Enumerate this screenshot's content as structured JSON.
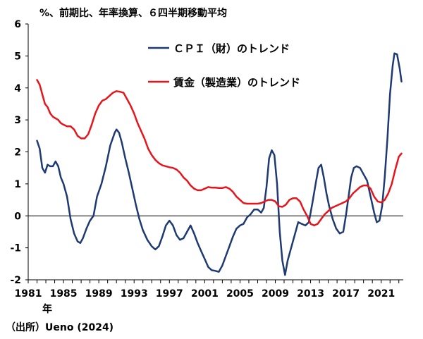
{
  "chart_data": {
    "type": "line",
    "unit_label": "%、前期比、年率換算、６四半期移動平均",
    "x_unit_label": "年",
    "source": "（出所）Ueno (2024)",
    "xlim": [
      1981,
      2023.5
    ],
    "ylim": [
      -2,
      6
    ],
    "x_ticks": [
      "1981",
      "1985",
      "1989",
      "1993",
      "1997",
      "2001",
      "2005",
      "2009",
      "2013",
      "2017",
      "2021"
    ],
    "y_ticks": [
      "-2",
      "-1",
      "0",
      "1",
      "2",
      "3",
      "4",
      "5",
      "6"
    ],
    "zero_line": true,
    "grid": false,
    "legend_position": "top-center",
    "series": [
      {
        "name": "ＣＰＩ（財）のトレンド",
        "color": "#1f3a73",
        "points": [
          [
            1982.0,
            2.35
          ],
          [
            1982.3,
            2.1
          ],
          [
            1982.6,
            1.5
          ],
          [
            1982.9,
            1.35
          ],
          [
            1983.2,
            1.6
          ],
          [
            1983.5,
            1.55
          ],
          [
            1983.8,
            1.55
          ],
          [
            1984.1,
            1.7
          ],
          [
            1984.4,
            1.55
          ],
          [
            1984.7,
            1.2
          ],
          [
            1985.0,
            1.0
          ],
          [
            1985.4,
            0.6
          ],
          [
            1985.8,
            -0.1
          ],
          [
            1986.2,
            -0.55
          ],
          [
            1986.6,
            -0.8
          ],
          [
            1986.9,
            -0.85
          ],
          [
            1987.2,
            -0.7
          ],
          [
            1987.6,
            -0.4
          ],
          [
            1988.0,
            -0.15
          ],
          [
            1988.4,
            0.0
          ],
          [
            1988.8,
            0.6
          ],
          [
            1989.3,
            1.0
          ],
          [
            1989.8,
            1.55
          ],
          [
            1990.3,
            2.2
          ],
          [
            1990.8,
            2.6
          ],
          [
            1991.0,
            2.7
          ],
          [
            1991.3,
            2.6
          ],
          [
            1991.6,
            2.3
          ],
          [
            1992.0,
            1.8
          ],
          [
            1992.4,
            1.35
          ],
          [
            1992.8,
            0.85
          ],
          [
            1993.2,
            0.35
          ],
          [
            1993.6,
            -0.1
          ],
          [
            1994.0,
            -0.45
          ],
          [
            1994.5,
            -0.75
          ],
          [
            1995.0,
            -0.95
          ],
          [
            1995.4,
            -1.05
          ],
          [
            1995.8,
            -0.95
          ],
          [
            1996.2,
            -0.65
          ],
          [
            1996.6,
            -0.3
          ],
          [
            1997.0,
            -0.15
          ],
          [
            1997.4,
            -0.3
          ],
          [
            1997.8,
            -0.6
          ],
          [
            1998.2,
            -0.75
          ],
          [
            1998.6,
            -0.7
          ],
          [
            1999.0,
            -0.5
          ],
          [
            1999.4,
            -0.3
          ],
          [
            1999.8,
            -0.55
          ],
          [
            2000.2,
            -0.85
          ],
          [
            2000.6,
            -1.1
          ],
          [
            2001.0,
            -1.35
          ],
          [
            2001.4,
            -1.6
          ],
          [
            2001.8,
            -1.7
          ],
          [
            2002.2,
            -1.72
          ],
          [
            2002.6,
            -1.75
          ],
          [
            2003.0,
            -1.55
          ],
          [
            2003.4,
            -1.25
          ],
          [
            2003.8,
            -0.95
          ],
          [
            2004.2,
            -0.65
          ],
          [
            2004.6,
            -0.4
          ],
          [
            2005.0,
            -0.3
          ],
          [
            2005.4,
            -0.25
          ],
          [
            2005.8,
            -0.05
          ],
          [
            2006.2,
            0.05
          ],
          [
            2006.6,
            0.2
          ],
          [
            2007.0,
            0.2
          ],
          [
            2007.4,
            0.1
          ],
          [
            2007.7,
            0.25
          ],
          [
            2008.0,
            0.9
          ],
          [
            2008.3,
            1.8
          ],
          [
            2008.6,
            2.05
          ],
          [
            2008.9,
            1.9
          ],
          [
            2009.2,
            1.0
          ],
          [
            2009.5,
            -0.5
          ],
          [
            2009.8,
            -1.4
          ],
          [
            2010.1,
            -1.85
          ],
          [
            2010.4,
            -1.4
          ],
          [
            2010.8,
            -1.0
          ],
          [
            2011.2,
            -0.6
          ],
          [
            2011.6,
            -0.2
          ],
          [
            2012.0,
            -0.25
          ],
          [
            2012.4,
            -0.3
          ],
          [
            2012.8,
            -0.2
          ],
          [
            2013.2,
            0.4
          ],
          [
            2013.6,
            1.05
          ],
          [
            2013.9,
            1.5
          ],
          [
            2014.2,
            1.6
          ],
          [
            2014.5,
            1.2
          ],
          [
            2014.8,
            0.7
          ],
          [
            2015.1,
            0.3
          ],
          [
            2015.5,
            -0.1
          ],
          [
            2015.9,
            -0.4
          ],
          [
            2016.3,
            -0.55
          ],
          [
            2016.7,
            -0.5
          ],
          [
            2017.0,
            0.0
          ],
          [
            2017.3,
            0.6
          ],
          [
            2017.6,
            1.2
          ],
          [
            2017.9,
            1.5
          ],
          [
            2018.2,
            1.55
          ],
          [
            2018.6,
            1.5
          ],
          [
            2019.0,
            1.3
          ],
          [
            2019.4,
            1.1
          ],
          [
            2019.8,
            0.6
          ],
          [
            2020.2,
            0.1
          ],
          [
            2020.5,
            -0.2
          ],
          [
            2020.8,
            -0.15
          ],
          [
            2021.1,
            0.3
          ],
          [
            2021.4,
            1.2
          ],
          [
            2021.7,
            2.4
          ],
          [
            2022.0,
            3.8
          ],
          [
            2022.3,
            4.7
          ],
          [
            2022.5,
            5.08
          ],
          [
            2022.8,
            5.05
          ],
          [
            2023.1,
            4.6
          ],
          [
            2023.3,
            4.2
          ]
        ]
      },
      {
        "name": "賃金（製造業）のトレンド",
        "color": "#e8141b",
        "points": [
          [
            1982.0,
            4.25
          ],
          [
            1982.3,
            4.1
          ],
          [
            1982.6,
            3.8
          ],
          [
            1982.9,
            3.5
          ],
          [
            1983.2,
            3.4
          ],
          [
            1983.5,
            3.2
          ],
          [
            1983.8,
            3.1
          ],
          [
            1984.1,
            3.05
          ],
          [
            1984.4,
            3.0
          ],
          [
            1984.7,
            2.9
          ],
          [
            1985.0,
            2.85
          ],
          [
            1985.4,
            2.8
          ],
          [
            1985.8,
            2.8
          ],
          [
            1986.2,
            2.7
          ],
          [
            1986.6,
            2.5
          ],
          [
            1987.0,
            2.42
          ],
          [
            1987.4,
            2.42
          ],
          [
            1987.8,
            2.55
          ],
          [
            1988.2,
            2.85
          ],
          [
            1988.6,
            3.2
          ],
          [
            1989.0,
            3.45
          ],
          [
            1989.4,
            3.6
          ],
          [
            1989.8,
            3.65
          ],
          [
            1990.2,
            3.75
          ],
          [
            1990.6,
            3.85
          ],
          [
            1991.0,
            3.9
          ],
          [
            1991.4,
            3.88
          ],
          [
            1991.8,
            3.85
          ],
          [
            1992.2,
            3.65
          ],
          [
            1992.6,
            3.45
          ],
          [
            1993.0,
            3.2
          ],
          [
            1993.4,
            2.9
          ],
          [
            1993.8,
            2.65
          ],
          [
            1994.2,
            2.4
          ],
          [
            1994.6,
            2.1
          ],
          [
            1995.0,
            1.9
          ],
          [
            1995.4,
            1.75
          ],
          [
            1995.8,
            1.65
          ],
          [
            1996.2,
            1.58
          ],
          [
            1996.6,
            1.55
          ],
          [
            1997.0,
            1.52
          ],
          [
            1997.4,
            1.5
          ],
          [
            1997.8,
            1.45
          ],
          [
            1998.2,
            1.35
          ],
          [
            1998.6,
            1.2
          ],
          [
            1999.0,
            1.1
          ],
          [
            1999.4,
            0.95
          ],
          [
            1999.8,
            0.85
          ],
          [
            2000.2,
            0.8
          ],
          [
            2000.6,
            0.8
          ],
          [
            2001.0,
            0.85
          ],
          [
            2001.4,
            0.9
          ],
          [
            2001.8,
            0.88
          ],
          [
            2002.2,
            0.88
          ],
          [
            2002.6,
            0.87
          ],
          [
            2003.0,
            0.87
          ],
          [
            2003.4,
            0.9
          ],
          [
            2003.8,
            0.85
          ],
          [
            2004.2,
            0.75
          ],
          [
            2004.6,
            0.6
          ],
          [
            2005.0,
            0.5
          ],
          [
            2005.4,
            0.4
          ],
          [
            2005.8,
            0.38
          ],
          [
            2006.2,
            0.38
          ],
          [
            2006.6,
            0.38
          ],
          [
            2007.0,
            0.38
          ],
          [
            2007.4,
            0.4
          ],
          [
            2007.8,
            0.45
          ],
          [
            2008.2,
            0.5
          ],
          [
            2008.6,
            0.5
          ],
          [
            2009.0,
            0.45
          ],
          [
            2009.4,
            0.3
          ],
          [
            2009.8,
            0.28
          ],
          [
            2010.2,
            0.35
          ],
          [
            2010.6,
            0.5
          ],
          [
            2011.0,
            0.55
          ],
          [
            2011.4,
            0.55
          ],
          [
            2011.8,
            0.45
          ],
          [
            2012.2,
            0.2
          ],
          [
            2012.6,
            0.0
          ],
          [
            2013.0,
            -0.25
          ],
          [
            2013.4,
            -0.3
          ],
          [
            2013.8,
            -0.25
          ],
          [
            2014.2,
            -0.1
          ],
          [
            2014.6,
            0.05
          ],
          [
            2015.0,
            0.15
          ],
          [
            2015.4,
            0.25
          ],
          [
            2015.8,
            0.3
          ],
          [
            2016.2,
            0.35
          ],
          [
            2016.6,
            0.4
          ],
          [
            2017.0,
            0.45
          ],
          [
            2017.4,
            0.55
          ],
          [
            2017.8,
            0.7
          ],
          [
            2018.2,
            0.8
          ],
          [
            2018.6,
            0.9
          ],
          [
            2019.0,
            0.95
          ],
          [
            2019.4,
            0.95
          ],
          [
            2019.8,
            0.85
          ],
          [
            2020.2,
            0.6
          ],
          [
            2020.6,
            0.45
          ],
          [
            2021.0,
            0.42
          ],
          [
            2021.4,
            0.5
          ],
          [
            2021.8,
            0.7
          ],
          [
            2022.2,
            1.0
          ],
          [
            2022.6,
            1.45
          ],
          [
            2023.0,
            1.85
          ],
          [
            2023.3,
            1.95
          ]
        ]
      }
    ]
  }
}
